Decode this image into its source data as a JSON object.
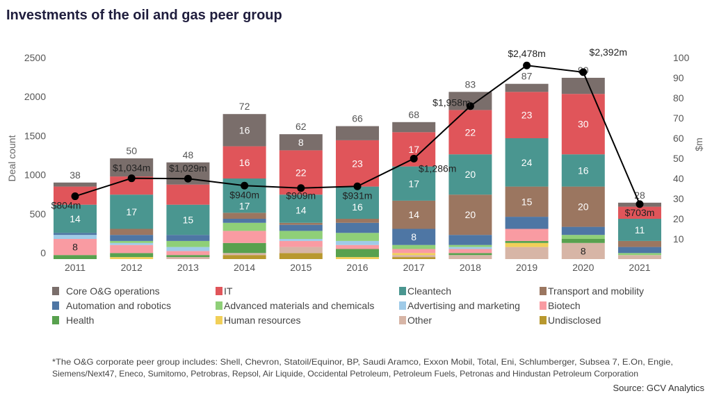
{
  "chart_data": {
    "type": "bar",
    "stacked": true,
    "title": "Investments of the oil and gas peer group",
    "categories": [
      "2011",
      "2012",
      "2013",
      "2014",
      "2015",
      "2016",
      "2017",
      "2018",
      "2019",
      "2020",
      "2021"
    ],
    "totals": [
      38,
      50,
      48,
      72,
      62,
      66,
      68,
      83,
      87,
      90,
      28
    ],
    "series": [
      {
        "name": "Undisclosed",
        "color": "#b8982e",
        "values": [
          0,
          0,
          0,
          2,
          3,
          0,
          1,
          0,
          0,
          0,
          0
        ],
        "labeled": []
      },
      {
        "name": "Other",
        "color": "#d7b5a6",
        "values": [
          0,
          0,
          1,
          1,
          3,
          0,
          1,
          2,
          6,
          8,
          2
        ],
        "labeled": [
          9
        ]
      },
      {
        "name": "Human resources",
        "color": "#f1cf58",
        "values": [
          0,
          1,
          0,
          0,
          0,
          1,
          1,
          0,
          2,
          0,
          0
        ],
        "labeled": []
      },
      {
        "name": "Health",
        "color": "#58a14e",
        "values": [
          2,
          2,
          1,
          5,
          0,
          4,
          0,
          1,
          1,
          2,
          0
        ],
        "labeled": []
      },
      {
        "name": "Biotech",
        "color": "#f99ba2",
        "values": [
          8,
          4,
          2,
          6,
          3,
          2,
          2,
          2,
          6,
          0,
          0
        ],
        "labeled": [
          0
        ]
      },
      {
        "name": "Advertising and marketing",
        "color": "#9fcbe8",
        "values": [
          2,
          1,
          2,
          0,
          1,
          2,
          0,
          1,
          0,
          0,
          0
        ],
        "labeled": []
      },
      {
        "name": "Advanced materials and chemicals",
        "color": "#8fcf78",
        "values": [
          0,
          1,
          3,
          4,
          4,
          4,
          2,
          1,
          0,
          2,
          1
        ],
        "labeled": []
      },
      {
        "name": "Automation and robotics",
        "color": "#4e76a4",
        "values": [
          1,
          3,
          3,
          2,
          3,
          5,
          8,
          5,
          6,
          4,
          3
        ],
        "labeled": [
          6
        ]
      },
      {
        "name": "Transport and mobility",
        "color": "#9b7660",
        "values": [
          0,
          3,
          0,
          3,
          1,
          2,
          14,
          20,
          15,
          20,
          3
        ],
        "labeled": [
          6,
          7,
          8,
          9
        ]
      },
      {
        "name": "Cleantech",
        "color": "#4a9690",
        "values": [
          14,
          17,
          15,
          17,
          14,
          16,
          17,
          20,
          24,
          16,
          11
        ],
        "labeled": [
          0,
          1,
          2,
          3,
          4,
          5,
          6,
          7,
          8,
          9,
          10
        ]
      },
      {
        "name": "IT",
        "color": "#e0555a",
        "values": [
          9,
          9,
          10,
          16,
          22,
          23,
          17,
          22,
          23,
          30,
          6
        ],
        "labeled": [
          3,
          4,
          5,
          6,
          7,
          8,
          9
        ]
      },
      {
        "name": "Core O&G operations",
        "color": "#7a6e6b",
        "values": [
          2,
          9,
          11,
          16,
          8,
          7,
          5,
          9,
          4,
          8,
          2
        ],
        "labeled": [
          3,
          4
        ]
      }
    ],
    "line": {
      "values": [
        804,
        1034,
        1029,
        940,
        909,
        931,
        1286,
        1958,
        2478,
        2392,
        703
      ],
      "labels": [
        "$804m",
        "$1,034m",
        "$1,029m",
        "$940m",
        "$909m",
        "$931m",
        "$1,286m",
        "$1,958m",
        "$2,478m",
        "$2,392m",
        "$703m"
      ],
      "color": "#000000"
    },
    "left_axis": {
      "label": "Deal count",
      "ticks": [
        "0",
        "500",
        "1000",
        "1500",
        "2000",
        "2500"
      ],
      "range": [
        0,
        2500
      ]
    },
    "right_axis": {
      "label": "$m",
      "ticks": [
        "10",
        "20",
        "30",
        "40",
        "50",
        "60",
        "70",
        "80",
        "90",
        "100"
      ],
      "range": [
        0,
        100
      ]
    },
    "grid": false,
    "legend_position": "bottom",
    "legend_order": [
      "Core O&G operations",
      "IT",
      "Cleantech",
      "Transport and mobility",
      "Automation and robotics",
      "Advanced materials and chemicals",
      "Advertising and marketing",
      "Biotech",
      "Health",
      "Human resources",
      "Other",
      "Undisclosed"
    ],
    "footnote": [
      "*The O&G corporate peer group includes: Shell, Chevron, Statoil/Equinor, BP, Saudi Aramco, Exxon Mobil, Total, Eni, Schlumberger, Subsea 7, E.On, Engie,",
      "Siemens/Next47, Eneco, Sumitomo, Petrobras, Repsol, Air Liquide, Occidental Petroleum, Petroleum Fuels, Petronas and Hindustan Petroleum Corporation"
    ],
    "source": "Source: GCV Analytics"
  }
}
